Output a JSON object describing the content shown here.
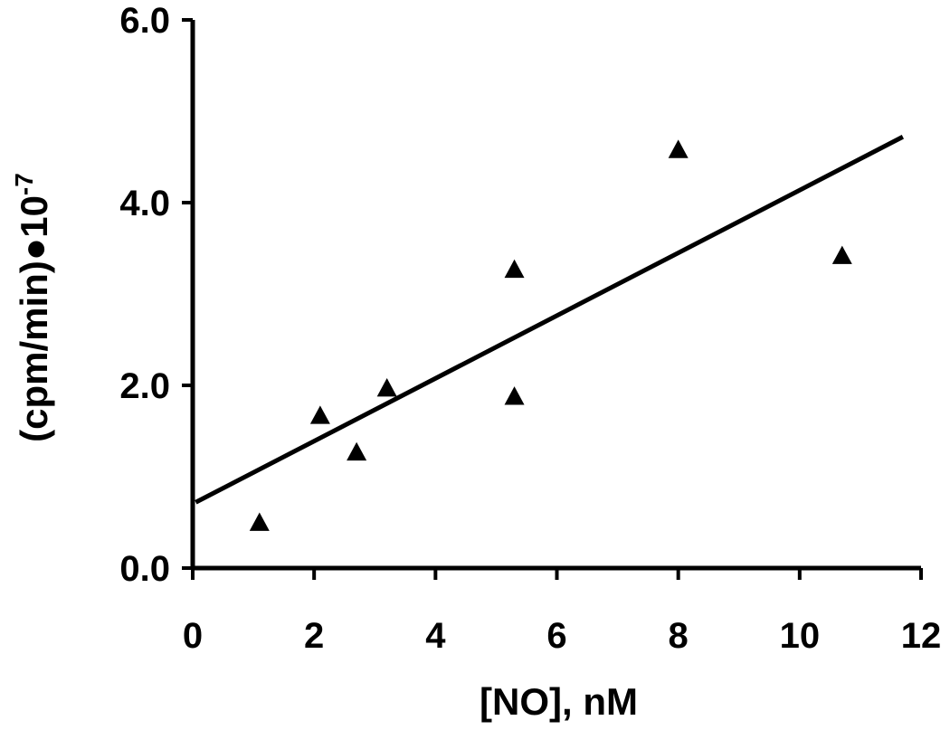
{
  "chart_data": {
    "type": "scatter",
    "xlabel": "[NO], nM",
    "ylabel_main": "(cpm/min)●10",
    "ylabel_exponent": "-7",
    "xlim": [
      0,
      12
    ],
    "ylim": [
      0,
      6
    ],
    "x_ticks": [
      0,
      2,
      4,
      6,
      8,
      10,
      12
    ],
    "x_tick_labels": [
      "0",
      "2",
      "4",
      "6",
      "8",
      "10",
      "12"
    ],
    "y_ticks": [
      0,
      2,
      4,
      6
    ],
    "y_tick_labels": [
      "0.0",
      "2.0",
      "4.0",
      "6.0"
    ],
    "grid": false,
    "marker": "triangle",
    "series": [
      {
        "points": [
          {
            "x": 1.1,
            "y": 0.5
          },
          {
            "x": 2.1,
            "y": 1.67
          },
          {
            "x": 2.7,
            "y": 1.27
          },
          {
            "x": 3.2,
            "y": 1.97
          },
          {
            "x": 5.3,
            "y": 1.88
          },
          {
            "x": 5.3,
            "y": 3.27
          },
          {
            "x": 8.0,
            "y": 4.58
          },
          {
            "x": 10.7,
            "y": 3.42
          }
        ]
      }
    ],
    "trendline": {
      "x": [
        0.05,
        11.7
      ],
      "y": [
        0.72,
        4.72
      ]
    }
  }
}
